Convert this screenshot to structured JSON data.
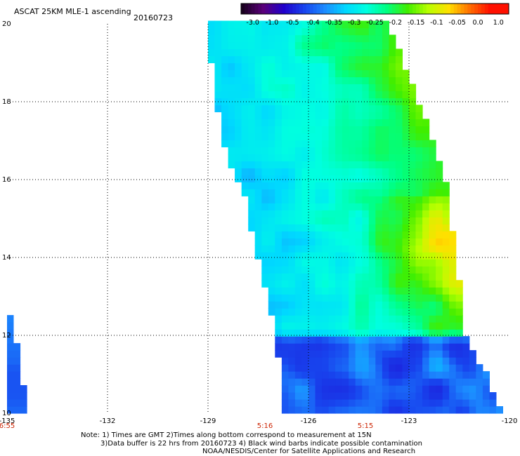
{
  "header": {
    "title": "ASCAT 25KM MLE-1 ascending",
    "date": "20160723"
  },
  "colorbar": {
    "labels": [
      "-3.0",
      "-1.0",
      "-0.5",
      "-0.4",
      "-0.35",
      "-0.3",
      "-0.25",
      "-0.2",
      "-0.15",
      "-0.1",
      "-0.05",
      "0.0",
      "1.0"
    ],
    "colors": [
      "#1a0020",
      "#5a007a",
      "#2000cc",
      "#1844ee",
      "#1c8cff",
      "#00d8ff",
      "#00ffe0",
      "#00ff80",
      "#40ee00",
      "#b8ff00",
      "#ffe000",
      "#ff7000",
      "#ff1000"
    ]
  },
  "chart_data": {
    "type": "heatmap",
    "title": "ASCAT 25KM MLE-1 ascending",
    "x_ticks": [
      "-135",
      "-132",
      "-129",
      "-126",
      "-123",
      "-120"
    ],
    "y_ticks": [
      "20",
      "18",
      "16",
      "14",
      "12",
      "10"
    ],
    "xlim": [
      -135,
      -120
    ],
    "ylim": [
      10,
      20
    ],
    "grid": true,
    "time_labels": [
      {
        "lon": -135,
        "text": "6:55"
      },
      {
        "lon": -127.3,
        "text": "5:16"
      },
      {
        "lon": -124.3,
        "text": "5:15"
      }
    ],
    "swath": {
      "west_edge": [
        [
          -129.1,
          20
        ],
        [
          -128.8,
          18.5
        ],
        [
          -128.6,
          17
        ],
        [
          -127.9,
          15.5
        ],
        [
          -127.5,
          14
        ],
        [
          -127.1,
          12.5
        ],
        [
          -126.9,
          11.5
        ],
        [
          -126.8,
          10
        ]
      ],
      "east_edge": [
        [
          -123.6,
          20
        ],
        [
          -122.7,
          18
        ],
        [
          -121.9,
          16
        ],
        [
          -121.6,
          14
        ],
        [
          -121.3,
          12
        ],
        [
          -120.7,
          11
        ],
        [
          -120.2,
          10
        ]
      ],
      "regions": [
        {
          "name": "north",
          "lat_range": [
            15,
            20
          ],
          "value_range": [
            -0.3,
            -0.15
          ]
        },
        {
          "name": "central-east",
          "lat_range": [
            13,
            15.5
          ],
          "value_range": [
            -0.2,
            -0.05
          ]
        },
        {
          "name": "south",
          "lat_range": [
            10,
            12
          ],
          "value_range": [
            -0.45,
            -0.35
          ]
        }
      ]
    },
    "west_strip": {
      "lon_range": [
        -135,
        -134.5
      ],
      "lat_range": [
        10,
        12.4
      ],
      "value": -0.38
    }
  },
  "notes": {
    "line1": "Note: 1) Times are GMT 2)Times along bottom correspond to measurement at 15N",
    "line2": "3)Data buffer is 22 hrs from 20160723 4) Black wind barbs indicate possible contamination",
    "line3": "NOAA/NESDIS/Center for Satellite Applications and Research"
  }
}
